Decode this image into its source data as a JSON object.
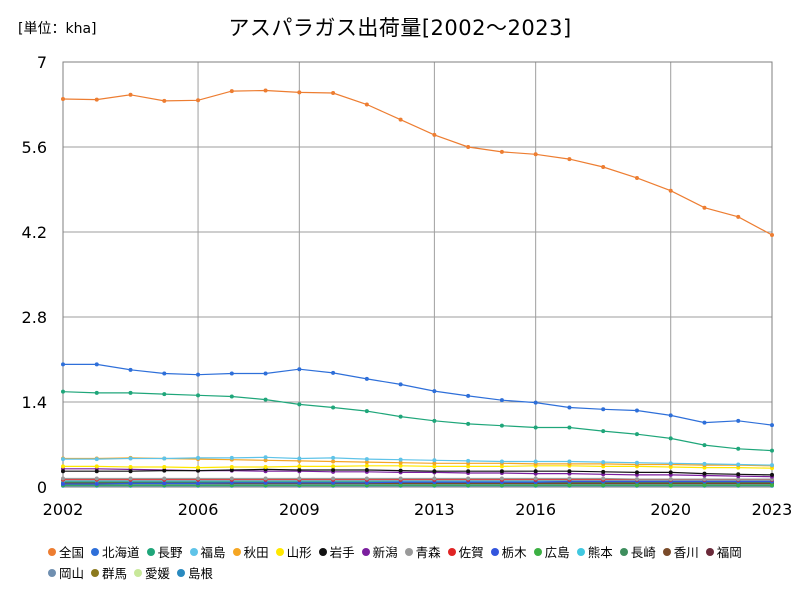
{
  "chart_data": {
    "type": "line",
    "title": "アスパラガス出荷量[2002～2023]",
    "unit_label": "[単位：kha]",
    "x_tick_labels": [
      "2002",
      "2006",
      "2009",
      "2013",
      "2016",
      "2020",
      "2023"
    ],
    "y_tick_labels": [
      "0",
      "1.4",
      "2.8",
      "4.2",
      "5.6",
      "7"
    ],
    "xlim": [
      2002,
      2023
    ],
    "ylim": [
      0,
      7
    ],
    "grid": true,
    "legend_position": "bottom",
    "x": [
      2002,
      2003,
      2004,
      2005,
      2006,
      2007,
      2008,
      2009,
      2010,
      2011,
      2012,
      2013,
      2014,
      2015,
      2016,
      2017,
      2018,
      2019,
      2020,
      2021,
      2022,
      2023
    ],
    "series": [
      {
        "name": "全国",
        "color": "#ED7D31",
        "values": [
          6.39,
          6.38,
          6.46,
          6.36,
          6.37,
          6.52,
          6.53,
          6.5,
          6.49,
          6.3,
          6.05,
          5.8,
          5.6,
          5.52,
          5.48,
          5.4,
          5.27,
          5.09,
          4.88,
          4.6,
          4.45,
          4.15
        ]
      },
      {
        "name": "北海道",
        "color": "#2E6FD9",
        "values": [
          2.02,
          2.02,
          1.93,
          1.87,
          1.85,
          1.87,
          1.87,
          1.94,
          1.88,
          1.78,
          1.69,
          1.58,
          1.5,
          1.43,
          1.39,
          1.31,
          1.28,
          1.26,
          1.18,
          1.06,
          1.09,
          1.02
        ]
      },
      {
        "name": "長野",
        "color": "#1FA67A",
        "values": [
          1.57,
          1.55,
          1.55,
          1.53,
          1.51,
          1.49,
          1.44,
          1.36,
          1.31,
          1.25,
          1.16,
          1.09,
          1.04,
          1.01,
          0.98,
          0.98,
          0.92,
          0.87,
          0.8,
          0.69,
          0.63,
          0.6
        ]
      },
      {
        "name": "福島",
        "color": "#5FC3E8",
        "values": [
          0.46,
          0.46,
          0.47,
          0.47,
          0.48,
          0.48,
          0.49,
          0.47,
          0.48,
          0.46,
          0.45,
          0.44,
          0.43,
          0.42,
          0.42,
          0.42,
          0.41,
          0.4,
          0.39,
          0.38,
          0.37,
          0.36
        ]
      },
      {
        "name": "秋田",
        "color": "#F5A623",
        "values": [
          0.47,
          0.47,
          0.48,
          0.47,
          0.46,
          0.45,
          0.44,
          0.43,
          0.42,
          0.41,
          0.4,
          0.39,
          0.39,
          0.39,
          0.38,
          0.38,
          0.38,
          0.37,
          0.37,
          0.36,
          0.36,
          0.35
        ]
      },
      {
        "name": "山形",
        "color": "#FFE800",
        "values": [
          0.34,
          0.34,
          0.33,
          0.33,
          0.32,
          0.33,
          0.33,
          0.34,
          0.34,
          0.35,
          0.35,
          0.34,
          0.34,
          0.34,
          0.35,
          0.35,
          0.34,
          0.34,
          0.33,
          0.32,
          0.32,
          0.31
        ]
      },
      {
        "name": "岩手",
        "color": "#111111",
        "values": [
          0.26,
          0.26,
          0.26,
          0.27,
          0.27,
          0.28,
          0.29,
          0.28,
          0.28,
          0.28,
          0.27,
          0.26,
          0.26,
          0.26,
          0.26,
          0.26,
          0.25,
          0.24,
          0.24,
          0.22,
          0.21,
          0.2
        ]
      },
      {
        "name": "新潟",
        "color": "#7B1F9E",
        "values": [
          0.3,
          0.3,
          0.29,
          0.28,
          0.27,
          0.27,
          0.26,
          0.26,
          0.25,
          0.25,
          0.24,
          0.24,
          0.23,
          0.23,
          0.22,
          0.22,
          0.21,
          0.2,
          0.2,
          0.19,
          0.18,
          0.17
        ]
      },
      {
        "name": "青森",
        "color": "#9A9A9A",
        "values": [
          0.14,
          0.14,
          0.14,
          0.14,
          0.14,
          0.14,
          0.14,
          0.14,
          0.14,
          0.14,
          0.14,
          0.14,
          0.14,
          0.14,
          0.14,
          0.14,
          0.14,
          0.13,
          0.13,
          0.13,
          0.13,
          0.13
        ]
      },
      {
        "name": "佐賀",
        "color": "#E02424",
        "values": [
          0.12,
          0.12,
          0.12,
          0.12,
          0.12,
          0.12,
          0.12,
          0.12,
          0.12,
          0.12,
          0.12,
          0.12,
          0.12,
          0.12,
          0.12,
          0.12,
          0.12,
          0.12,
          0.12,
          0.12,
          0.12,
          0.12
        ]
      },
      {
        "name": "栃木",
        "color": "#3355DD",
        "values": [
          0.05,
          0.05,
          0.06,
          0.06,
          0.06,
          0.07,
          0.07,
          0.07,
          0.07,
          0.07,
          0.08,
          0.08,
          0.08,
          0.08,
          0.08,
          0.09,
          0.09,
          0.09,
          0.09,
          0.09,
          0.09,
          0.09
        ]
      },
      {
        "name": "広島",
        "color": "#3CB043",
        "values": [
          0.03,
          0.03,
          0.03,
          0.03,
          0.03,
          0.03,
          0.03,
          0.03,
          0.03,
          0.03,
          0.03,
          0.03,
          0.03,
          0.03,
          0.03,
          0.03,
          0.03,
          0.03,
          0.03,
          0.03,
          0.03,
          0.03
        ]
      },
      {
        "name": "熊本",
        "color": "#41C8E0",
        "values": [
          0.1,
          0.1,
          0.1,
          0.1,
          0.1,
          0.1,
          0.1,
          0.1,
          0.1,
          0.1,
          0.1,
          0.1,
          0.1,
          0.1,
          0.1,
          0.1,
          0.1,
          0.1,
          0.1,
          0.1,
          0.1,
          0.1
        ]
      },
      {
        "name": "長崎",
        "color": "#3E8E5E",
        "values": [
          0.08,
          0.08,
          0.08,
          0.08,
          0.08,
          0.08,
          0.08,
          0.08,
          0.08,
          0.08,
          0.08,
          0.08,
          0.08,
          0.08,
          0.08,
          0.08,
          0.08,
          0.08,
          0.08,
          0.08,
          0.08,
          0.08
        ]
      },
      {
        "name": "香川",
        "color": "#7A4B2A",
        "values": [
          0.06,
          0.06,
          0.06,
          0.06,
          0.06,
          0.06,
          0.06,
          0.06,
          0.06,
          0.06,
          0.06,
          0.06,
          0.06,
          0.06,
          0.06,
          0.06,
          0.06,
          0.06,
          0.06,
          0.06,
          0.06,
          0.06
        ]
      },
      {
        "name": "福岡",
        "color": "#6B2A3A",
        "values": [
          0.07,
          0.07,
          0.07,
          0.07,
          0.07,
          0.07,
          0.07,
          0.07,
          0.07,
          0.07,
          0.07,
          0.07,
          0.07,
          0.07,
          0.07,
          0.07,
          0.07,
          0.07,
          0.07,
          0.07,
          0.07,
          0.07
        ]
      },
      {
        "name": "岡山",
        "color": "#6F8FB0",
        "values": [
          0.04,
          0.04,
          0.04,
          0.04,
          0.04,
          0.04,
          0.04,
          0.04,
          0.04,
          0.04,
          0.04,
          0.04,
          0.04,
          0.04,
          0.04,
          0.04,
          0.04,
          0.04,
          0.04,
          0.04,
          0.04,
          0.04
        ]
      },
      {
        "name": "群馬",
        "color": "#8C7A1E",
        "values": [
          0.09,
          0.09,
          0.09,
          0.09,
          0.09,
          0.09,
          0.09,
          0.09,
          0.09,
          0.09,
          0.09,
          0.09,
          0.09,
          0.09,
          0.09,
          0.09,
          0.09,
          0.09,
          0.09,
          0.09,
          0.09,
          0.09
        ]
      },
      {
        "name": "愛媛",
        "color": "#C8E89A",
        "values": [
          0.05,
          0.05,
          0.05,
          0.05,
          0.05,
          0.05,
          0.05,
          0.05,
          0.05,
          0.05,
          0.05,
          0.05,
          0.05,
          0.05,
          0.05,
          0.05,
          0.05,
          0.05,
          0.05,
          0.05,
          0.05,
          0.05
        ]
      },
      {
        "name": "島根",
        "color": "#2A8ABF",
        "values": [
          0.02,
          0.02,
          0.02,
          0.02,
          0.02,
          0.02,
          0.02,
          0.02,
          0.02,
          0.02,
          0.02,
          0.02,
          0.02,
          0.02,
          0.02,
          0.02,
          0.02,
          0.02,
          0.02,
          0.02,
          0.02,
          0.02
        ]
      }
    ]
  }
}
